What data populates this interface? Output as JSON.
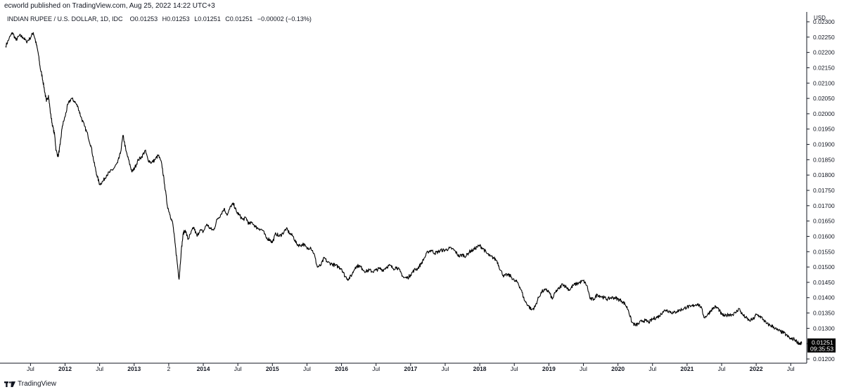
{
  "header": {
    "published_text": "ecworld published on TradingView.com, Aug 25, 2022 14:22 UTC+3"
  },
  "legend": {
    "symbol": "INDIAN RUPEE / U.S. DOLLAR, 1D, IDC",
    "open_label": "O",
    "open": "0.01253",
    "high_label": "H",
    "high": "0.01253",
    "low_label": "L",
    "low": "0.01251",
    "close_label": "C",
    "close": "0.01251",
    "change": "−0.00002 (−0.13%)"
  },
  "price_scale": {
    "currency": "USD"
  },
  "last_price": {
    "value": "0.01251",
    "countdown": "09:35:53"
  },
  "footer": {
    "brand": "TradingView"
  },
  "colors": {
    "line": "#000000",
    "background": "#ffffff",
    "badge_bg": "#000000",
    "badge_text": "#ffffff"
  },
  "chart_data": {
    "type": "line",
    "ylim": [
      0.012,
      0.023
    ],
    "y_ticks": [
      "0.02300",
      "0.02250",
      "0.02200",
      "0.02150",
      "0.02100",
      "0.02050",
      "0.02000",
      "0.01950",
      "0.01900",
      "0.01850",
      "0.01800",
      "0.01750",
      "0.01700",
      "0.01650",
      "0.01600",
      "0.01550",
      "0.01500",
      "0.01450",
      "0.01400",
      "0.01350",
      "0.01300",
      "0.01250",
      "0.01200"
    ],
    "x_ticks": [
      {
        "label": "Jul",
        "t": 2011.5,
        "bold": false
      },
      {
        "label": "2012",
        "t": 2012.0,
        "bold": true
      },
      {
        "label": "Jul",
        "t": 2012.5,
        "bold": false
      },
      {
        "label": "2013",
        "t": 2013.0,
        "bold": true
      },
      {
        "label": "2",
        "t": 2013.5,
        "bold": false
      },
      {
        "label": "2014",
        "t": 2014.0,
        "bold": true
      },
      {
        "label": "Jul",
        "t": 2014.5,
        "bold": false
      },
      {
        "label": "2015",
        "t": 2015.0,
        "bold": true
      },
      {
        "label": "Jul",
        "t": 2015.5,
        "bold": false
      },
      {
        "label": "2016",
        "t": 2016.0,
        "bold": true
      },
      {
        "label": "Jul",
        "t": 2016.5,
        "bold": false
      },
      {
        "label": "2017",
        "t": 2017.0,
        "bold": true
      },
      {
        "label": "Jul",
        "t": 2017.5,
        "bold": false
      },
      {
        "label": "2018",
        "t": 2018.0,
        "bold": true
      },
      {
        "label": "Jul",
        "t": 2018.5,
        "bold": false
      },
      {
        "label": "2019",
        "t": 2019.0,
        "bold": true
      },
      {
        "label": "Jul",
        "t": 2019.5,
        "bold": false
      },
      {
        "label": "2020",
        "t": 2020.0,
        "bold": true
      },
      {
        "label": "Jul",
        "t": 2020.5,
        "bold": false
      },
      {
        "label": "2021",
        "t": 2021.0,
        "bold": true
      },
      {
        "label": "Jul",
        "t": 2021.5,
        "bold": false
      },
      {
        "label": "2022",
        "t": 2022.0,
        "bold": true
      },
      {
        "label": "Jul",
        "t": 2022.5,
        "bold": false
      }
    ],
    "x_range": [
      2011.14,
      2022.66
    ],
    "series": [
      {
        "points": [
          [
            2011.14,
            0.0222
          ],
          [
            2011.19,
            0.02245
          ],
          [
            2011.24,
            0.02265
          ],
          [
            2011.29,
            0.0224
          ],
          [
            2011.34,
            0.02255
          ],
          [
            2011.39,
            0.0225
          ],
          [
            2011.44,
            0.02235
          ],
          [
            2011.49,
            0.02245
          ],
          [
            2011.54,
            0.02265
          ],
          [
            2011.57,
            0.0224
          ],
          [
            2011.61,
            0.022
          ],
          [
            2011.64,
            0.0215
          ],
          [
            2011.67,
            0.0212
          ],
          [
            2011.7,
            0.0208
          ],
          [
            2011.73,
            0.0204
          ],
          [
            2011.76,
            0.0206
          ],
          [
            2011.79,
            0.02
          ],
          [
            2011.82,
            0.0196
          ],
          [
            2011.85,
            0.0193
          ],
          [
            2011.87,
            0.0188
          ],
          [
            2011.9,
            0.0186
          ],
          [
            2011.93,
            0.019
          ],
          [
            2011.96,
            0.0196
          ],
          [
            2012.0,
            0.0199
          ],
          [
            2012.04,
            0.0203
          ],
          [
            2012.09,
            0.0205
          ],
          [
            2012.14,
            0.0204
          ],
          [
            2012.19,
            0.0202
          ],
          [
            2012.23,
            0.0199
          ],
          [
            2012.28,
            0.0196
          ],
          [
            2012.33,
            0.0193
          ],
          [
            2012.38,
            0.0189
          ],
          [
            2012.42,
            0.0184
          ],
          [
            2012.46,
            0.018
          ],
          [
            2012.5,
            0.0177
          ],
          [
            2012.55,
            0.0178
          ],
          [
            2012.6,
            0.018
          ],
          [
            2012.65,
            0.0181
          ],
          [
            2012.7,
            0.0182
          ],
          [
            2012.76,
            0.0184
          ],
          [
            2012.8,
            0.0187
          ],
          [
            2012.84,
            0.0193
          ],
          [
            2012.88,
            0.0188
          ],
          [
            2012.93,
            0.0184
          ],
          [
            2012.97,
            0.0181
          ],
          [
            2013.01,
            0.01825
          ],
          [
            2013.06,
            0.0185
          ],
          [
            2013.11,
            0.0186
          ],
          [
            2013.16,
            0.0188
          ],
          [
            2013.2,
            0.0185
          ],
          [
            2013.25,
            0.0184
          ],
          [
            2013.3,
            0.0185
          ],
          [
            2013.35,
            0.01865
          ],
          [
            2013.4,
            0.01835
          ],
          [
            2013.44,
            0.0177
          ],
          [
            2013.48,
            0.017
          ],
          [
            2013.52,
            0.0167
          ],
          [
            2013.56,
            0.0164
          ],
          [
            2013.59,
            0.0158
          ],
          [
            2013.62,
            0.0152
          ],
          [
            2013.65,
            0.0146
          ],
          [
            2013.68,
            0.0155
          ],
          [
            2013.71,
            0.0161
          ],
          [
            2013.74,
            0.0162
          ],
          [
            2013.78,
            0.0159
          ],
          [
            2013.82,
            0.0161
          ],
          [
            2013.86,
            0.0163
          ],
          [
            2013.91,
            0.016
          ],
          [
            2013.95,
            0.0162
          ],
          [
            2014.0,
            0.01615
          ],
          [
            2014.05,
            0.0164
          ],
          [
            2014.1,
            0.01625
          ],
          [
            2014.15,
            0.0162
          ],
          [
            2014.2,
            0.01655
          ],
          [
            2014.25,
            0.0167
          ],
          [
            2014.3,
            0.0169
          ],
          [
            2014.35,
            0.0167
          ],
          [
            2014.4,
            0.017
          ],
          [
            2014.44,
            0.01705
          ],
          [
            2014.48,
            0.0168
          ],
          [
            2014.52,
            0.0167
          ],
          [
            2014.57,
            0.01655
          ],
          [
            2014.62,
            0.0166
          ],
          [
            2014.66,
            0.0164
          ],
          [
            2014.71,
            0.01645
          ],
          [
            2014.76,
            0.0163
          ],
          [
            2014.81,
            0.01625
          ],
          [
            2014.86,
            0.0162
          ],
          [
            2014.91,
            0.01595
          ],
          [
            2014.96,
            0.0159
          ],
          [
            2015.0,
            0.0158
          ],
          [
            2015.05,
            0.0161
          ],
          [
            2015.1,
            0.016
          ],
          [
            2015.15,
            0.0161
          ],
          [
            2015.2,
            0.01625
          ],
          [
            2015.25,
            0.0161
          ],
          [
            2015.3,
            0.016
          ],
          [
            2015.35,
            0.01575
          ],
          [
            2015.4,
            0.0157
          ],
          [
            2015.45,
            0.01575
          ],
          [
            2015.5,
            0.0156
          ],
          [
            2015.55,
            0.01565
          ],
          [
            2015.6,
            0.01545
          ],
          [
            2015.65,
            0.015
          ],
          [
            2015.7,
            0.01505
          ],
          [
            2015.75,
            0.0153
          ],
          [
            2015.8,
            0.01515
          ],
          [
            2015.86,
            0.0151
          ],
          [
            2015.91,
            0.01505
          ],
          [
            2015.96,
            0.015
          ],
          [
            2016.0,
            0.01495
          ],
          [
            2016.05,
            0.0147
          ],
          [
            2016.1,
            0.0146
          ],
          [
            2016.15,
            0.01475
          ],
          [
            2016.2,
            0.015
          ],
          [
            2016.25,
            0.01505
          ],
          [
            2016.3,
            0.01495
          ],
          [
            2016.35,
            0.01485
          ],
          [
            2016.4,
            0.0149
          ],
          [
            2016.45,
            0.01485
          ],
          [
            2016.5,
            0.0149
          ],
          [
            2016.55,
            0.01495
          ],
          [
            2016.6,
            0.0149
          ],
          [
            2016.65,
            0.015
          ],
          [
            2016.7,
            0.01505
          ],
          [
            2016.75,
            0.01495
          ],
          [
            2016.8,
            0.015
          ],
          [
            2016.85,
            0.01485
          ],
          [
            2016.9,
            0.01465
          ],
          [
            2016.96,
            0.01465
          ],
          [
            2017.0,
            0.01475
          ],
          [
            2017.05,
            0.0149
          ],
          [
            2017.1,
            0.01495
          ],
          [
            2017.15,
            0.0151
          ],
          [
            2017.2,
            0.0153
          ],
          [
            2017.25,
            0.0155
          ],
          [
            2017.3,
            0.01555
          ],
          [
            2017.35,
            0.01545
          ],
          [
            2017.4,
            0.0155
          ],
          [
            2017.45,
            0.01555
          ],
          [
            2017.5,
            0.01555
          ],
          [
            2017.55,
            0.0156
          ],
          [
            2017.6,
            0.0156
          ],
          [
            2017.65,
            0.0155
          ],
          [
            2017.7,
            0.01535
          ],
          [
            2017.75,
            0.0154
          ],
          [
            2017.8,
            0.01535
          ],
          [
            2017.85,
            0.0155
          ],
          [
            2017.9,
            0.01555
          ],
          [
            2017.96,
            0.01565
          ],
          [
            2018.0,
            0.0157
          ],
          [
            2018.05,
            0.0156
          ],
          [
            2018.1,
            0.01545
          ],
          [
            2018.15,
            0.01535
          ],
          [
            2018.2,
            0.0153
          ],
          [
            2018.25,
            0.0152
          ],
          [
            2018.3,
            0.0149
          ],
          [
            2018.35,
            0.0147
          ],
          [
            2018.4,
            0.01475
          ],
          [
            2018.45,
            0.0147
          ],
          [
            2018.5,
            0.01455
          ],
          [
            2018.55,
            0.0145
          ],
          [
            2018.6,
            0.01425
          ],
          [
            2018.65,
            0.0139
          ],
          [
            2018.7,
            0.01375
          ],
          [
            2018.75,
            0.0136
          ],
          [
            2018.8,
            0.0137
          ],
          [
            2018.85,
            0.014
          ],
          [
            2018.9,
            0.0142
          ],
          [
            2018.96,
            0.01425
          ],
          [
            2019.0,
            0.0142
          ],
          [
            2019.05,
            0.01395
          ],
          [
            2019.1,
            0.0142
          ],
          [
            2019.15,
            0.0143
          ],
          [
            2019.2,
            0.01445
          ],
          [
            2019.25,
            0.01435
          ],
          [
            2019.3,
            0.01425
          ],
          [
            2019.35,
            0.0144
          ],
          [
            2019.4,
            0.01445
          ],
          [
            2019.45,
            0.0145
          ],
          [
            2019.5,
            0.01455
          ],
          [
            2019.55,
            0.0144
          ],
          [
            2019.6,
            0.01395
          ],
          [
            2019.65,
            0.01395
          ],
          [
            2019.7,
            0.0141
          ],
          [
            2019.75,
            0.01405
          ],
          [
            2019.8,
            0.014
          ],
          [
            2019.85,
            0.01395
          ],
          [
            2019.9,
            0.014
          ],
          [
            2019.96,
            0.014
          ],
          [
            2020.0,
            0.01395
          ],
          [
            2020.05,
            0.0139
          ],
          [
            2020.1,
            0.0138
          ],
          [
            2020.15,
            0.0136
          ],
          [
            2020.2,
            0.0132
          ],
          [
            2020.25,
            0.0131
          ],
          [
            2020.3,
            0.01315
          ],
          [
            2020.35,
            0.01325
          ],
          [
            2020.4,
            0.01325
          ],
          [
            2020.45,
            0.0132
          ],
          [
            2020.5,
            0.0133
          ],
          [
            2020.55,
            0.01335
          ],
          [
            2020.6,
            0.0134
          ],
          [
            2020.65,
            0.01355
          ],
          [
            2020.7,
            0.0136
          ],
          [
            2020.75,
            0.01355
          ],
          [
            2020.8,
            0.0135
          ],
          [
            2020.85,
            0.01355
          ],
          [
            2020.9,
            0.0136
          ],
          [
            2020.96,
            0.01365
          ],
          [
            2021.0,
            0.0137
          ],
          [
            2021.05,
            0.0137
          ],
          [
            2021.1,
            0.01375
          ],
          [
            2021.15,
            0.0138
          ],
          [
            2021.2,
            0.0137
          ],
          [
            2021.25,
            0.01335
          ],
          [
            2021.3,
            0.01345
          ],
          [
            2021.35,
            0.0136
          ],
          [
            2021.4,
            0.0137
          ],
          [
            2021.45,
            0.01365
          ],
          [
            2021.5,
            0.01345
          ],
          [
            2021.55,
            0.0134
          ],
          [
            2021.6,
            0.01345
          ],
          [
            2021.65,
            0.01345
          ],
          [
            2021.7,
            0.0135
          ],
          [
            2021.75,
            0.01365
          ],
          [
            2021.8,
            0.01345
          ],
          [
            2021.85,
            0.01335
          ],
          [
            2021.9,
            0.01325
          ],
          [
            2021.96,
            0.0133
          ],
          [
            2022.0,
            0.01345
          ],
          [
            2022.05,
            0.0134
          ],
          [
            2022.1,
            0.0133
          ],
          [
            2022.15,
            0.01315
          ],
          [
            2022.2,
            0.0131
          ],
          [
            2022.25,
            0.01305
          ],
          [
            2022.3,
            0.01295
          ],
          [
            2022.35,
            0.0129
          ],
          [
            2022.4,
            0.01285
          ],
          [
            2022.45,
            0.01275
          ],
          [
            2022.5,
            0.01265
          ],
          [
            2022.55,
            0.01265
          ],
          [
            2022.6,
            0.01255
          ],
          [
            2022.63,
            0.0125
          ],
          [
            2022.66,
            0.01251
          ]
        ]
      }
    ]
  }
}
